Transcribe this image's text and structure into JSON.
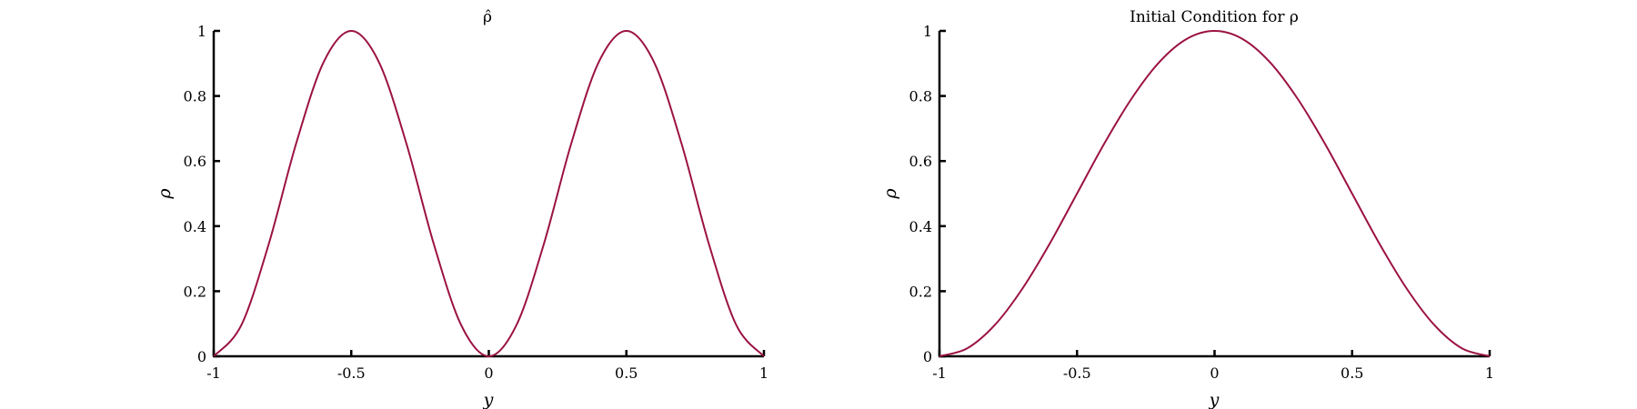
{
  "chart_data": [
    {
      "type": "line",
      "title": "ρ̂",
      "xlabel": "y",
      "ylabel": "ρ",
      "xlim": [
        -1,
        1
      ],
      "ylim": [
        0,
        1
      ],
      "xticks": [
        "-1",
        "-0.5",
        "0",
        "0.5",
        "1"
      ],
      "yticks": [
        "0",
        "0.2",
        "0.4",
        "0.6",
        "0.8",
        "1"
      ],
      "grid": false,
      "series": [
        {
          "color": "#9b1143",
          "x": [
            -1,
            -0.9,
            -0.8,
            -0.7,
            -0.6,
            -0.5,
            -0.4,
            -0.3,
            -0.2,
            -0.1,
            0,
            0.1,
            0.2,
            0.3,
            0.4,
            0.5,
            0.6,
            0.7,
            0.8,
            0.9,
            1
          ],
          "y": [
            0,
            0.095,
            0.345,
            0.655,
            0.905,
            1,
            0.905,
            0.655,
            0.345,
            0.095,
            0,
            0.095,
            0.345,
            0.655,
            0.905,
            1,
            0.905,
            0.655,
            0.345,
            0.095,
            0
          ]
        }
      ]
    },
    {
      "type": "line",
      "title": "Initial Condition for ρ",
      "xlabel": "y",
      "ylabel": "ρ",
      "xlim": [
        -1,
        1
      ],
      "ylim": [
        0,
        1
      ],
      "xticks": [
        "-1",
        "-0.5",
        "0",
        "0.5",
        "1"
      ],
      "yticks": [
        "0",
        "0.2",
        "0.4",
        "0.6",
        "0.8",
        "1"
      ],
      "grid": false,
      "series": [
        {
          "color": "#9b1143",
          "x": [
            -1,
            -0.9,
            -0.8,
            -0.7,
            -0.6,
            -0.5,
            -0.4,
            -0.3,
            -0.2,
            -0.1,
            0,
            0.1,
            0.2,
            0.3,
            0.4,
            0.5,
            0.6,
            0.7,
            0.8,
            0.9,
            1
          ],
          "y": [
            0,
            0.024,
            0.095,
            0.206,
            0.345,
            0.5,
            0.655,
            0.794,
            0.905,
            0.976,
            1,
            0.976,
            0.905,
            0.794,
            0.655,
            0.5,
            0.345,
            0.206,
            0.095,
            0.024,
            0
          ]
        }
      ]
    }
  ]
}
